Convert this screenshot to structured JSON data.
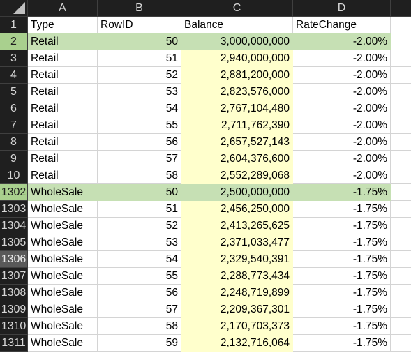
{
  "columns": [
    "A",
    "B",
    "C",
    "D"
  ],
  "rows": [
    {
      "rownum": "1",
      "cells": [
        "Type",
        "RowID",
        "Balance",
        "RateChange"
      ]
    },
    {
      "rownum": "2",
      "cells": [
        "Retail",
        "50",
        "3,000,000,000",
        "-2.00%"
      ]
    },
    {
      "rownum": "3",
      "cells": [
        "Retail",
        "51",
        "2,940,000,000",
        "-2.00%"
      ]
    },
    {
      "rownum": "4",
      "cells": [
        "Retail",
        "52",
        "2,881,200,000",
        "-2.00%"
      ]
    },
    {
      "rownum": "5",
      "cells": [
        "Retail",
        "53",
        "2,823,576,000",
        "-2.00%"
      ]
    },
    {
      "rownum": "6",
      "cells": [
        "Retail",
        "54",
        "2,767,104,480",
        "-2.00%"
      ]
    },
    {
      "rownum": "7",
      "cells": [
        "Retail",
        "55",
        "2,711,762,390",
        "-2.00%"
      ]
    },
    {
      "rownum": "8",
      "cells": [
        "Retail",
        "56",
        "2,657,527,143",
        "-2.00%"
      ]
    },
    {
      "rownum": "9",
      "cells": [
        "Retail",
        "57",
        "2,604,376,600",
        "-2.00%"
      ]
    },
    {
      "rownum": "10",
      "cells": [
        "Retail",
        "58",
        "2,552,289,068",
        "-2.00%"
      ]
    },
    {
      "rownum": "1302",
      "cells": [
        "WholeSale",
        "50",
        "2,500,000,000",
        "-1.75%"
      ]
    },
    {
      "rownum": "1303",
      "cells": [
        "WholeSale",
        "51",
        "2,456,250,000",
        "-1.75%"
      ]
    },
    {
      "rownum": "1304",
      "cells": [
        "WholeSale",
        "52",
        "2,413,265,625",
        "-1.75%"
      ]
    },
    {
      "rownum": "1305",
      "cells": [
        "WholeSale",
        "53",
        "2,371,033,477",
        "-1.75%"
      ]
    },
    {
      "rownum": "1306",
      "cells": [
        "WholeSale",
        "54",
        "2,329,540,391",
        "-1.75%"
      ]
    },
    {
      "rownum": "1307",
      "cells": [
        "WholeSale",
        "55",
        "2,288,773,434",
        "-1.75%"
      ]
    },
    {
      "rownum": "1308",
      "cells": [
        "WholeSale",
        "56",
        "2,248,719,899",
        "-1.75%"
      ]
    },
    {
      "rownum": "1309",
      "cells": [
        "WholeSale",
        "57",
        "2,209,367,301",
        "-1.75%"
      ]
    },
    {
      "rownum": "1310",
      "cells": [
        "WholeSale",
        "58",
        "2,170,703,373",
        "-1.75%"
      ]
    },
    {
      "rownum": "1311",
      "cells": [
        "WholeSale",
        "59",
        "2,132,716,064",
        "-1.75%"
      ]
    }
  ],
  "highlight_colors": {
    "header_bg": "#1f1f1f",
    "selected_row": "#c6e0b4",
    "balance_column_fill": "#ffffcc"
  }
}
